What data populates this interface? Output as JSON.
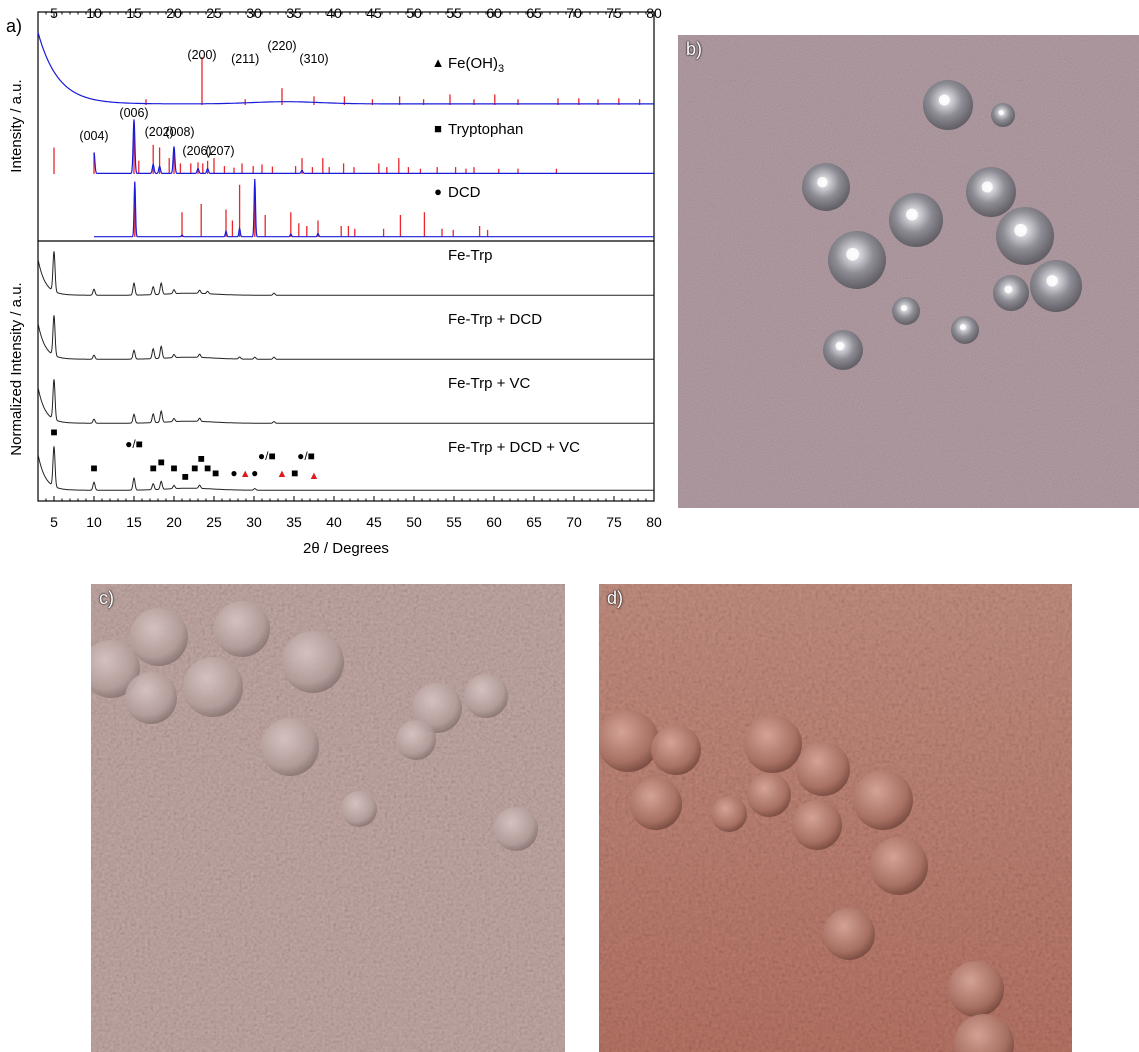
{
  "panel_labels": {
    "a": "a)",
    "b": "b)",
    "c": "c)",
    "d": "d)"
  },
  "chart_data": {
    "type": "line",
    "x_ticks": [
      5,
      10,
      15,
      20,
      25,
      30,
      35,
      40,
      45,
      50,
      55,
      60,
      65,
      70,
      75,
      80
    ],
    "xlim": [
      3,
      80
    ],
    "xlabel": "2θ / Degrees",
    "ylabel_top": "Intensity / a.u.",
    "ylabel_bottom": "Normalized Intensity / a.u.",
    "grid": false,
    "references": [
      {
        "name": "Fe(OH)",
        "name_sub": "3",
        "marker": "▲",
        "sticks": [
          [
            16.5,
            0.12
          ],
          [
            23.5,
            1.0
          ],
          [
            28.9,
            0.12
          ],
          [
            33.5,
            0.35
          ],
          [
            37.5,
            0.18
          ],
          [
            41.3,
            0.18
          ],
          [
            44.8,
            0.12
          ],
          [
            48.2,
            0.18
          ],
          [
            51.2,
            0.12
          ],
          [
            54.5,
            0.22
          ],
          [
            57.5,
            0.12
          ],
          [
            60.1,
            0.22
          ],
          [
            63.0,
            0.12
          ],
          [
            68.0,
            0.14
          ],
          [
            70.6,
            0.14
          ],
          [
            73.0,
            0.12
          ],
          [
            75.6,
            0.14
          ],
          [
            78.2,
            0.12
          ]
        ],
        "hkl": [
          {
            "x": 23.5,
            "label": "(200)"
          },
          {
            "x": 28.9,
            "label": "(211)"
          },
          {
            "x": 33.5,
            "label": "(220)"
          },
          {
            "x": 37.5,
            "label": "(310)"
          }
        ]
      },
      {
        "name": "Tryptophan",
        "marker": "■",
        "sticks": [
          [
            5.0,
            0.5
          ],
          [
            10.0,
            0.4
          ],
          [
            15.0,
            1.0
          ],
          [
            15.6,
            0.25
          ],
          [
            17.4,
            0.55
          ],
          [
            18.2,
            0.5
          ],
          [
            19.4,
            0.3
          ],
          [
            20.0,
            0.4
          ],
          [
            20.8,
            0.2
          ],
          [
            22.1,
            0.2
          ],
          [
            23.0,
            0.22
          ],
          [
            23.6,
            0.2
          ],
          [
            24.2,
            0.25
          ],
          [
            25.0,
            0.3
          ],
          [
            26.3,
            0.15
          ],
          [
            27.5,
            0.12
          ],
          [
            28.5,
            0.2
          ],
          [
            29.9,
            0.15
          ],
          [
            31.0,
            0.18
          ],
          [
            32.3,
            0.14
          ],
          [
            35.2,
            0.15
          ],
          [
            36.0,
            0.3
          ],
          [
            37.3,
            0.13
          ],
          [
            38.6,
            0.3
          ],
          [
            39.4,
            0.13
          ],
          [
            41.2,
            0.2
          ],
          [
            42.5,
            0.13
          ],
          [
            45.6,
            0.2
          ],
          [
            46.6,
            0.13
          ],
          [
            48.1,
            0.3
          ],
          [
            49.3,
            0.13
          ],
          [
            50.8,
            0.1
          ],
          [
            52.9,
            0.13
          ],
          [
            55.2,
            0.13
          ],
          [
            56.5,
            0.1
          ],
          [
            57.5,
            0.13
          ],
          [
            60.6,
            0.1
          ],
          [
            63.0,
            0.1
          ],
          [
            67.8,
            0.1
          ]
        ],
        "hkl": [
          {
            "x": 10.0,
            "label": "(004)"
          },
          {
            "x": 15.0,
            "label": "(006)"
          },
          {
            "x": 17.9,
            "label": "(202)"
          },
          {
            "x": 20.0,
            "label": "(008)"
          },
          {
            "x": 23.0,
            "label": "(206)"
          },
          {
            "x": 25.0,
            "label": "(207)"
          }
        ]
      },
      {
        "name": "DCD",
        "marker": "●",
        "sticks": [
          [
            15.1,
            1.0
          ],
          [
            21.0,
            0.45
          ],
          [
            23.4,
            0.6
          ],
          [
            26.5,
            0.5
          ],
          [
            27.3,
            0.3
          ],
          [
            28.2,
            0.95
          ],
          [
            30.1,
            1.0
          ],
          [
            31.4,
            0.4
          ],
          [
            34.6,
            0.45
          ],
          [
            35.6,
            0.25
          ],
          [
            36.6,
            0.2
          ],
          [
            38.0,
            0.3
          ],
          [
            40.9,
            0.2
          ],
          [
            41.8,
            0.2
          ],
          [
            42.6,
            0.15
          ],
          [
            46.2,
            0.15
          ],
          [
            48.3,
            0.4
          ],
          [
            51.3,
            0.45
          ],
          [
            53.5,
            0.15
          ],
          [
            54.9,
            0.13
          ],
          [
            58.2,
            0.2
          ],
          [
            59.2,
            0.13
          ]
        ]
      }
    ],
    "series": [
      {
        "name": "Fe-Trp",
        "peaks": [
          [
            5.0,
            1.0
          ],
          [
            10.0,
            0.15
          ],
          [
            15.0,
            0.3
          ],
          [
            17.4,
            0.2
          ],
          [
            18.4,
            0.28
          ],
          [
            20.0,
            0.1
          ],
          [
            23.2,
            0.08
          ],
          [
            24.2,
            0.06
          ],
          [
            32.5,
            0.05
          ]
        ]
      },
      {
        "name": "Fe-Trp + DCD",
        "peaks": [
          [
            5.0,
            1.0
          ],
          [
            10.0,
            0.1
          ],
          [
            15.0,
            0.22
          ],
          [
            17.4,
            0.25
          ],
          [
            18.4,
            0.3
          ],
          [
            20.0,
            0.08
          ],
          [
            23.2,
            0.08
          ],
          [
            28.2,
            0.05
          ],
          [
            30.1,
            0.05
          ],
          [
            32.5,
            0.05
          ]
        ]
      },
      {
        "name": "Fe-Trp + VC",
        "peaks": [
          [
            5.0,
            1.0
          ],
          [
            10.0,
            0.1
          ],
          [
            15.0,
            0.22
          ],
          [
            17.4,
            0.22
          ],
          [
            18.4,
            0.28
          ],
          [
            20.0,
            0.08
          ],
          [
            23.2,
            0.08
          ],
          [
            32.5,
            0.04
          ]
        ]
      },
      {
        "name": "Fe-Trp + DCD + VC",
        "peaks": [
          [
            5.0,
            1.0
          ],
          [
            10.0,
            0.2
          ],
          [
            15.0,
            0.3
          ],
          [
            17.4,
            0.15
          ],
          [
            18.4,
            0.2
          ],
          [
            20.0,
            0.08
          ],
          [
            23.2,
            0.08
          ],
          [
            30.1,
            0.04
          ]
        ]
      }
    ],
    "annotation_markers": [
      {
        "symbol": "■",
        "x": 5.0,
        "level": 4
      },
      {
        "symbol": "■",
        "x": 10.0,
        "level": 1
      },
      {
        "symbol": "●/■",
        "x": 15.0,
        "level": 3
      },
      {
        "symbol": "■",
        "x": 17.4,
        "level": 1
      },
      {
        "symbol": "■",
        "x": 18.4,
        "level": 1.5
      },
      {
        "symbol": "■",
        "x": 20.0,
        "level": 1
      },
      {
        "symbol": "■",
        "x": 21.4,
        "level": 0.3
      },
      {
        "symbol": "■",
        "x": 22.6,
        "level": 1
      },
      {
        "symbol": "■",
        "x": 23.4,
        "level": 1.8
      },
      {
        "symbol": "■",
        "x": 24.2,
        "level": 1
      },
      {
        "symbol": "■",
        "x": 25.2,
        "level": 0.6
      },
      {
        "symbol": "●",
        "x": 27.5,
        "level": 0.6
      },
      {
        "symbol": "▲",
        "x": 28.9,
        "level": 0.6
      },
      {
        "symbol": "●",
        "x": 30.1,
        "level": 0.6
      },
      {
        "symbol": "●/■",
        "x": 31.6,
        "level": 2.0
      },
      {
        "symbol": "▲",
        "x": 33.5,
        "level": 0.6
      },
      {
        "symbol": "■",
        "x": 35.1,
        "level": 0.6
      },
      {
        "symbol": "●/■",
        "x": 36.5,
        "level": 2.0
      },
      {
        "symbol": "▲",
        "x": 37.5,
        "level": 0.4
      }
    ],
    "colors": {
      "measured": "#1b1bdc",
      "reference_sticks": "#e8262c",
      "sample_lines": "#222222",
      "triangle_marker": "#e0191e"
    }
  }
}
